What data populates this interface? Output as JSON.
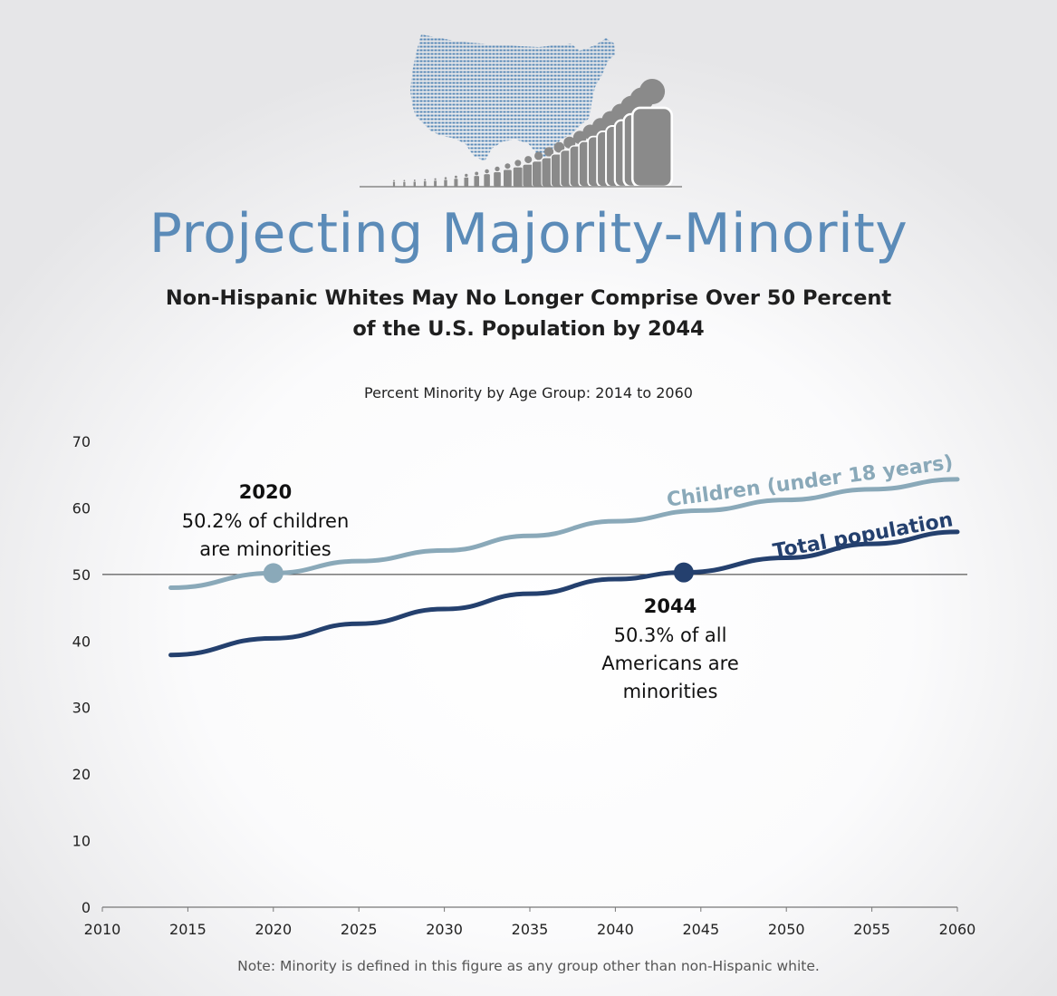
{
  "header": {
    "title": "Projecting Majority-Minority",
    "subtitle_line1": "Non-Hispanic Whites May No Longer Comprise Over 50 Percent",
    "subtitle_line2": "of the U.S. Population by 2044"
  },
  "colors": {
    "title": "#5b8bb8",
    "children_series": "#8aa9b9",
    "total_series": "#24406e",
    "map": "#5b8bb8",
    "figures": "#8a8a8a"
  },
  "logo": {
    "map_icon": "us-map-icon",
    "people_icon": "people-row-icon"
  },
  "chart_data": {
    "type": "line",
    "title": "Percent Minority by Age Group: 2014 to 2060",
    "xlim": [
      2010,
      2060
    ],
    "ylim": [
      0,
      70
    ],
    "x_ticks": [
      2010,
      2015,
      2020,
      2025,
      2030,
      2035,
      2040,
      2045,
      2050,
      2055,
      2060
    ],
    "y_ticks": [
      0,
      10,
      20,
      30,
      40,
      50,
      60,
      70
    ],
    "reference_line": 50,
    "grid": false,
    "series": [
      {
        "name": "Children (under 18 years)",
        "x": [
          2014,
          2020,
          2025,
          2030,
          2035,
          2040,
          2045,
          2050,
          2055,
          2060
        ],
        "y": [
          48.0,
          50.2,
          52.0,
          53.6,
          55.8,
          58.0,
          59.6,
          61.2,
          62.8,
          64.3
        ]
      },
      {
        "name": "Total population",
        "x": [
          2014,
          2020,
          2025,
          2030,
          2035,
          2040,
          2044,
          2050,
          2055,
          2060
        ],
        "y": [
          37.9,
          40.4,
          42.6,
          44.8,
          47.1,
          49.3,
          50.3,
          52.5,
          54.6,
          56.4
        ]
      }
    ],
    "annotations": [
      {
        "series": 0,
        "x": 2020,
        "y": 50.2,
        "year": "2020",
        "lines": [
          "50.2% of children",
          "are minorities"
        ]
      },
      {
        "series": 1,
        "x": 2044,
        "y": 50.3,
        "year": "2044",
        "lines": [
          "50.3% of all",
          "Americans are",
          "minorities"
        ]
      }
    ]
  },
  "note": "Note: Minority is defined in this figure as any group other than non-Hispanic white."
}
